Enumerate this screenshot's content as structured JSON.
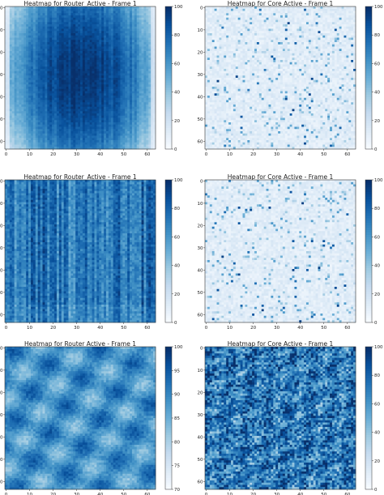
{
  "chart_data": [
    {
      "type": "heatmap",
      "title": "Heatmap for Router_Active - Frame 1",
      "grid_size": 64,
      "x_ticks": [
        "0",
        "10",
        "20",
        "30",
        "40",
        "50",
        "60"
      ],
      "y_ticks": [
        "0",
        "10",
        "20",
        "30",
        "40",
        "50",
        "60"
      ],
      "colorbar": {
        "min": 0,
        "max": 100,
        "ticks": [
          "0",
          "20",
          "40",
          "60",
          "80",
          "100"
        ]
      },
      "colormap": "Blues",
      "pattern": "center-dense-gradient",
      "mean_value": 70
    },
    {
      "type": "heatmap",
      "title": "Heatmap for Core Active - Frame 1",
      "grid_size": 64,
      "x_ticks": [
        "0",
        "10",
        "20",
        "30",
        "40",
        "50",
        "60"
      ],
      "y_ticks": [
        "0",
        "10",
        "20",
        "30",
        "40",
        "50",
        "60"
      ],
      "colorbar": {
        "min": 0,
        "max": 100,
        "ticks": [
          "0",
          "20",
          "40",
          "60",
          "80",
          "100"
        ]
      },
      "colormap": "Blues",
      "pattern": "sparse-low",
      "mean_value": 15
    },
    {
      "type": "heatmap",
      "title": "Heatmap for Router_Active - Frame 1",
      "grid_size": 64,
      "x_ticks": [
        "0",
        "10",
        "20",
        "30",
        "40",
        "50",
        "60"
      ],
      "y_ticks": [
        "0",
        "10",
        "20",
        "30",
        "40",
        "50",
        "60"
      ],
      "colorbar": {
        "min": 0,
        "max": 100,
        "ticks": [
          "0",
          "20",
          "40",
          "60",
          "80",
          "100"
        ]
      },
      "colormap": "Blues",
      "pattern": "vertical-streaks",
      "mean_value": 65
    },
    {
      "type": "heatmap",
      "title": "Heatmap for Core Active - Frame 1",
      "grid_size": 64,
      "x_ticks": [
        "0",
        "10",
        "20",
        "30",
        "40",
        "50",
        "60"
      ],
      "y_ticks": [
        "0",
        "10",
        "20",
        "30",
        "40",
        "50",
        "60"
      ],
      "colorbar": {
        "min": 0,
        "max": 100,
        "ticks": [
          "0",
          "20",
          "40",
          "60",
          "80",
          "100"
        ]
      },
      "colormap": "Blues",
      "pattern": "sparse-low",
      "mean_value": 18
    },
    {
      "type": "heatmap",
      "title": "Heatmap for Router Active - Frame 1",
      "grid_size": 64,
      "x_ticks": [
        "0",
        "10",
        "20",
        "30",
        "40",
        "50",
        "60"
      ],
      "y_ticks": [
        "0",
        "10",
        "20",
        "30",
        "40",
        "50",
        "60"
      ],
      "colorbar": {
        "min": 70,
        "max": 100,
        "ticks": [
          "70",
          "75",
          "80",
          "85",
          "90",
          "95",
          "100"
        ]
      },
      "colormap": "Blues",
      "pattern": "smooth-noise",
      "mean_value": 86
    },
    {
      "type": "heatmap",
      "title": "Heatmap for Core Active - Frame 1",
      "grid_size": 64,
      "x_ticks": [
        "0",
        "10",
        "20",
        "30",
        "40",
        "50",
        "60"
      ],
      "y_ticks": [
        "0",
        "10",
        "20",
        "30",
        "40",
        "50",
        "60"
      ],
      "colorbar": {
        "min": 0,
        "max": 100,
        "ticks": [
          "0",
          "20",
          "40",
          "60",
          "80",
          "100"
        ]
      },
      "colormap": "Blues",
      "pattern": "high-contrast-noise",
      "mean_value": 75
    }
  ]
}
